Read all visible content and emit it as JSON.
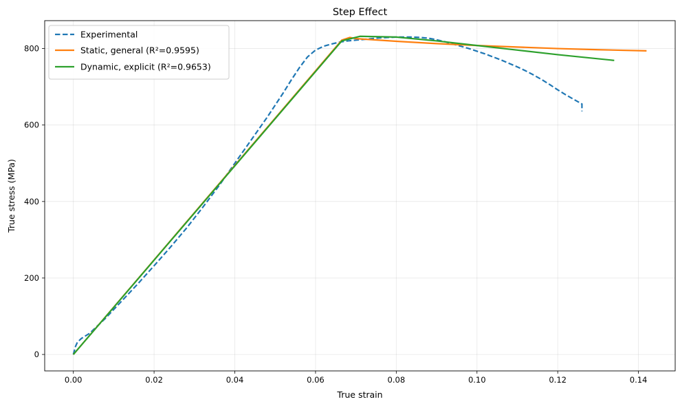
{
  "chart_data": {
    "type": "line",
    "title": "Step Effect",
    "xlabel": "True strain",
    "ylabel": "True stress (MPa)",
    "xlim": [
      -0.0071,
      0.1491
    ],
    "ylim": [
      -43,
      873
    ],
    "xticks": [
      0.0,
      0.02,
      0.04,
      0.06,
      0.08,
      0.1,
      0.12,
      0.14
    ],
    "xtick_labels": [
      "0.00",
      "0.02",
      "0.04",
      "0.06",
      "0.08",
      "0.10",
      "0.12",
      "0.14"
    ],
    "yticks": [
      0,
      200,
      400,
      600,
      800
    ],
    "ytick_labels": [
      "0",
      "200",
      "400",
      "600",
      "800"
    ],
    "grid": true,
    "legend": "top-left",
    "series": [
      {
        "name": "Experimental",
        "color": "#1f77b4",
        "dash": "dashed",
        "x": [
          0.0,
          0.0005,
          0.001,
          0.002,
          0.004,
          0.008,
          0.012,
          0.016,
          0.02,
          0.024,
          0.028,
          0.032,
          0.036,
          0.04,
          0.044,
          0.048,
          0.052,
          0.054,
          0.056,
          0.058,
          0.06,
          0.062,
          0.064,
          0.066,
          0.068,
          0.07,
          0.072,
          0.074,
          0.076,
          0.078,
          0.08,
          0.082,
          0.084,
          0.086,
          0.088,
          0.09,
          0.092,
          0.094,
          0.096,
          0.098,
          0.1,
          0.102,
          0.104,
          0.106,
          0.108,
          0.11,
          0.112,
          0.114,
          0.116,
          0.118,
          0.12,
          0.122,
          0.124,
          0.125,
          0.126,
          0.126,
          0.126
        ],
        "y": [
          0,
          20,
          32,
          42,
          55,
          95,
          140,
          185,
          232,
          280,
          330,
          384,
          440,
          500,
          560,
          620,
          684,
          718,
          750,
          778,
          796,
          806,
          812,
          817,
          820,
          822,
          824,
          826,
          828,
          829,
          830,
          830,
          830,
          829,
          827,
          823,
          818,
          812,
          806,
          800,
          793,
          786,
          778,
          770,
          761,
          752,
          742,
          731,
          719,
          706,
          692,
          679,
          667,
          661,
          655,
          648,
          636
        ]
      },
      {
        "name": "Static, general (R²=0.9595)",
        "color": "#ff7f0e",
        "dash": "solid",
        "x": [
          0.0,
          0.0665,
          0.0685,
          0.07,
          0.08,
          0.09,
          0.1,
          0.11,
          0.12,
          0.13,
          0.142
        ],
        "y": [
          0,
          822,
          829,
          826,
          819,
          813,
          808,
          804,
          800,
          797,
          794
        ]
      },
      {
        "name": "Dynamic, explicit (R²=0.9653)",
        "color": "#2ca02c",
        "dash": "solid",
        "x": [
          0.0,
          0.0665,
          0.071,
          0.08,
          0.09,
          0.1,
          0.11,
          0.12,
          0.134
        ],
        "y": [
          0,
          820,
          832,
          830,
          820,
          808,
          796,
          784,
          769
        ]
      }
    ]
  }
}
